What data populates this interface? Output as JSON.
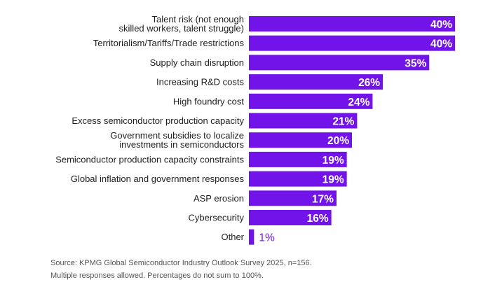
{
  "chart_data": {
    "type": "bar",
    "orientation": "horizontal",
    "title": "",
    "xlabel": "",
    "ylabel": "",
    "xlim": [
      0,
      40
    ],
    "grid": false,
    "categories": [
      [
        "Talent risk (not enough",
        "skilled workers, talent struggle)"
      ],
      [
        "Territorialism/Tariffs/Trade restrictions"
      ],
      [
        "Supply chain disruption"
      ],
      [
        "Increasing R&D costs"
      ],
      [
        "High foundry cost"
      ],
      [
        "Excess semiconductor production capacity"
      ],
      [
        "Government subsidies to localize",
        "investments in semiconductors"
      ],
      [
        "Semiconductor production capacity constraints"
      ],
      [
        "Global inflation and government responses"
      ],
      [
        "ASP erosion"
      ],
      [
        "Cybersecurity"
      ],
      [
        "Other"
      ]
    ],
    "values": [
      40,
      40,
      35,
      26,
      24,
      21,
      20,
      19,
      19,
      17,
      16,
      1
    ],
    "value_labels": [
      "40%",
      "40%",
      "35%",
      "26%",
      "24%",
      "21%",
      "20%",
      "19%",
      "19%",
      "17%",
      "16%",
      "1%"
    ],
    "bar_color": "#7213ea",
    "outside_label_color": "#7213ea"
  },
  "footnotes": {
    "source": "Source:  KPMG Global Semiconductor Industry Outlook Survey 2025, n=156.",
    "note": "Multiple responses allowed. Percentages do not sum to 100%."
  }
}
